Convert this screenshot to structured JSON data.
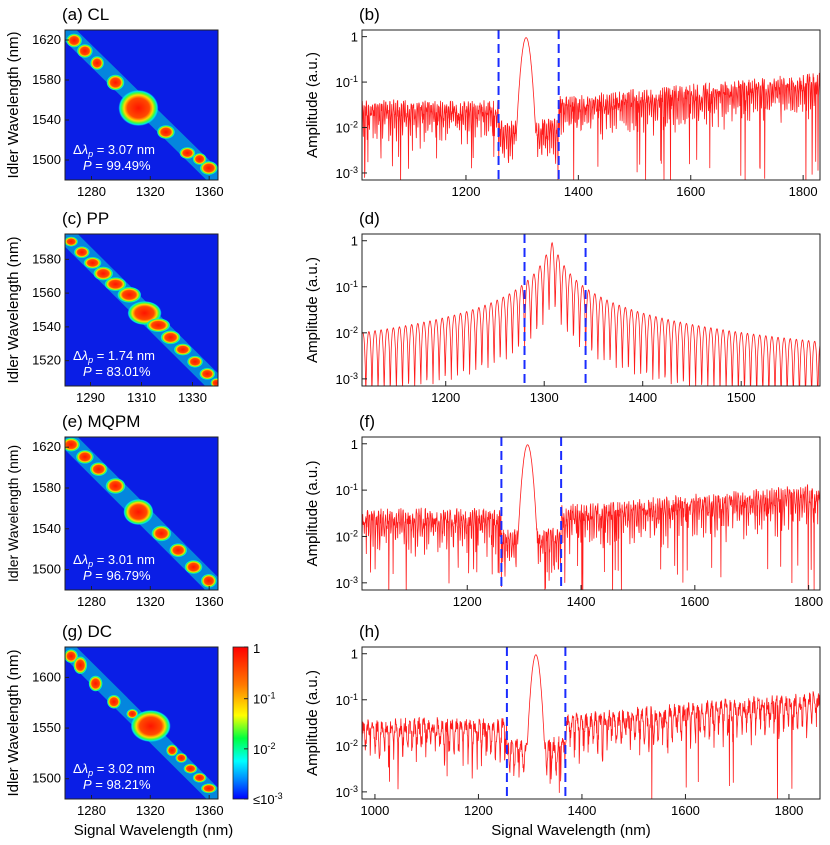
{
  "colors": {
    "map_bg": "#0a1ee6",
    "spectrum": "#ff1a1a",
    "cutoff": "#1a2cff",
    "annotation": "#ffffff"
  },
  "chart_data": [
    {
      "panel": "a",
      "type": "heatmap",
      "title": "(a) CL",
      "xlabel": "",
      "ylabel": "Idler Wavelength (nm)",
      "xlim": [
        1262,
        1366
      ],
      "ylim": [
        1480,
        1630
      ],
      "xticks": [
        "1280",
        "1320",
        "1360"
      ],
      "yticks": [
        "1500",
        "1540",
        "1580",
        "1620"
      ],
      "annotation": {
        "dlambda": "Δλp = 3.07 nm",
        "purity": "P = 99.49%"
      }
    },
    {
      "panel": "b",
      "type": "line",
      "title": "(b)",
      "xlabel": "",
      "ylabel": "Amplitude (a.u.)",
      "yscale": "log",
      "xlim": [
        1015,
        1830
      ],
      "ylim": [
        0.0007,
        1.4
      ],
      "xticks": [
        "1200",
        "1400",
        "1600",
        "1800"
      ],
      "yticks": [
        "10⁻³",
        "10⁻²",
        "10⁻¹",
        "1"
      ],
      "peak_x": 1307,
      "cutoffs": [
        1258,
        1365
      ],
      "outer_amp": [
        0.03,
        0.12
      ]
    },
    {
      "panel": "c",
      "type": "heatmap",
      "title": "(c) PP",
      "xlabel": "",
      "ylabel": "Idler Wavelength (nm)",
      "xlim": [
        1280,
        1340
      ],
      "ylim": [
        1505,
        1595
      ],
      "xticks": [
        "1290",
        "1310",
        "1330"
      ],
      "yticks": [
        "1520",
        "1540",
        "1560",
        "1580"
      ],
      "annotation": {
        "dlambda": "Δλp = 1.74 nm",
        "purity": "P = 83.01%"
      }
    },
    {
      "panel": "d",
      "type": "line",
      "title": "(d)",
      "xlabel": "",
      "ylabel": "Amplitude (a.u.)",
      "yscale": "log",
      "xlim": [
        1115,
        1580
      ],
      "ylim": [
        0.0007,
        1.4
      ],
      "xticks": [
        "1200",
        "1300",
        "1400",
        "1500"
      ],
      "yticks": [
        "10⁻³",
        "10⁻²",
        "10⁻¹",
        "1"
      ],
      "peak_x": 1308,
      "cutoffs": [
        1280,
        1342
      ],
      "tail_level": 0.005
    },
    {
      "panel": "e",
      "type": "heatmap",
      "title": "(e) MQPM",
      "xlabel": "",
      "ylabel": "Idler Wavelength (nm)",
      "xlim": [
        1262,
        1366
      ],
      "ylim": [
        1480,
        1630
      ],
      "xticks": [
        "1280",
        "1320",
        "1360"
      ],
      "yticks": [
        "1500",
        "1540",
        "1580",
        "1620"
      ],
      "annotation": {
        "dlambda": "Δλp = 3.01 nm",
        "purity": "P = 96.79%"
      }
    },
    {
      "panel": "f",
      "type": "line",
      "title": "(f)",
      "xlabel": "",
      "ylabel": "Amplitude (a.u.)",
      "yscale": "log",
      "xlim": [
        1015,
        1820
      ],
      "ylim": [
        0.0007,
        1.4
      ],
      "xticks": [
        "1200",
        "1400",
        "1600",
        "1800"
      ],
      "yticks": [
        "10⁻³",
        "10⁻²",
        "10⁻¹",
        "1"
      ],
      "peak_x": 1306,
      "cutoffs": [
        1260,
        1365
      ],
      "outer_amp": [
        0.03,
        0.1
      ]
    },
    {
      "panel": "g",
      "type": "heatmap",
      "title": "(g) DC",
      "xlabel": "Signal Wavelength (nm)",
      "ylabel": "Idler Wavelength (nm)",
      "xlim": [
        1262,
        1366
      ],
      "ylim": [
        1480,
        1630
      ],
      "xticks": [
        "1280",
        "1320",
        "1360"
      ],
      "yticks": [
        "1500",
        "1550",
        "1600"
      ],
      "annotation": {
        "dlambda": "Δλp = 3.02 nm",
        "purity": "P = 98.21%"
      },
      "colorbar": {
        "ticks": [
          "1",
          "10⁻¹",
          "10⁻²",
          "≤10⁻³"
        ],
        "scale": "log"
      }
    },
    {
      "panel": "h",
      "type": "line",
      "title": "(h)",
      "xlabel": "Signal Wavelength (nm)",
      "ylabel": "Amplitude (a.u.)",
      "yscale": "log",
      "xlim": [
        975,
        1860
      ],
      "ylim": [
        0.0007,
        1.4
      ],
      "xticks": [
        "1000",
        "1200",
        "1400",
        "1600",
        "1800"
      ],
      "yticks": [
        "10⁻³",
        "10⁻²",
        "10⁻¹",
        "1"
      ],
      "peak_x": 1311,
      "cutoffs": [
        1255,
        1368
      ],
      "outer_amp": [
        0.03,
        0.12
      ]
    }
  ]
}
